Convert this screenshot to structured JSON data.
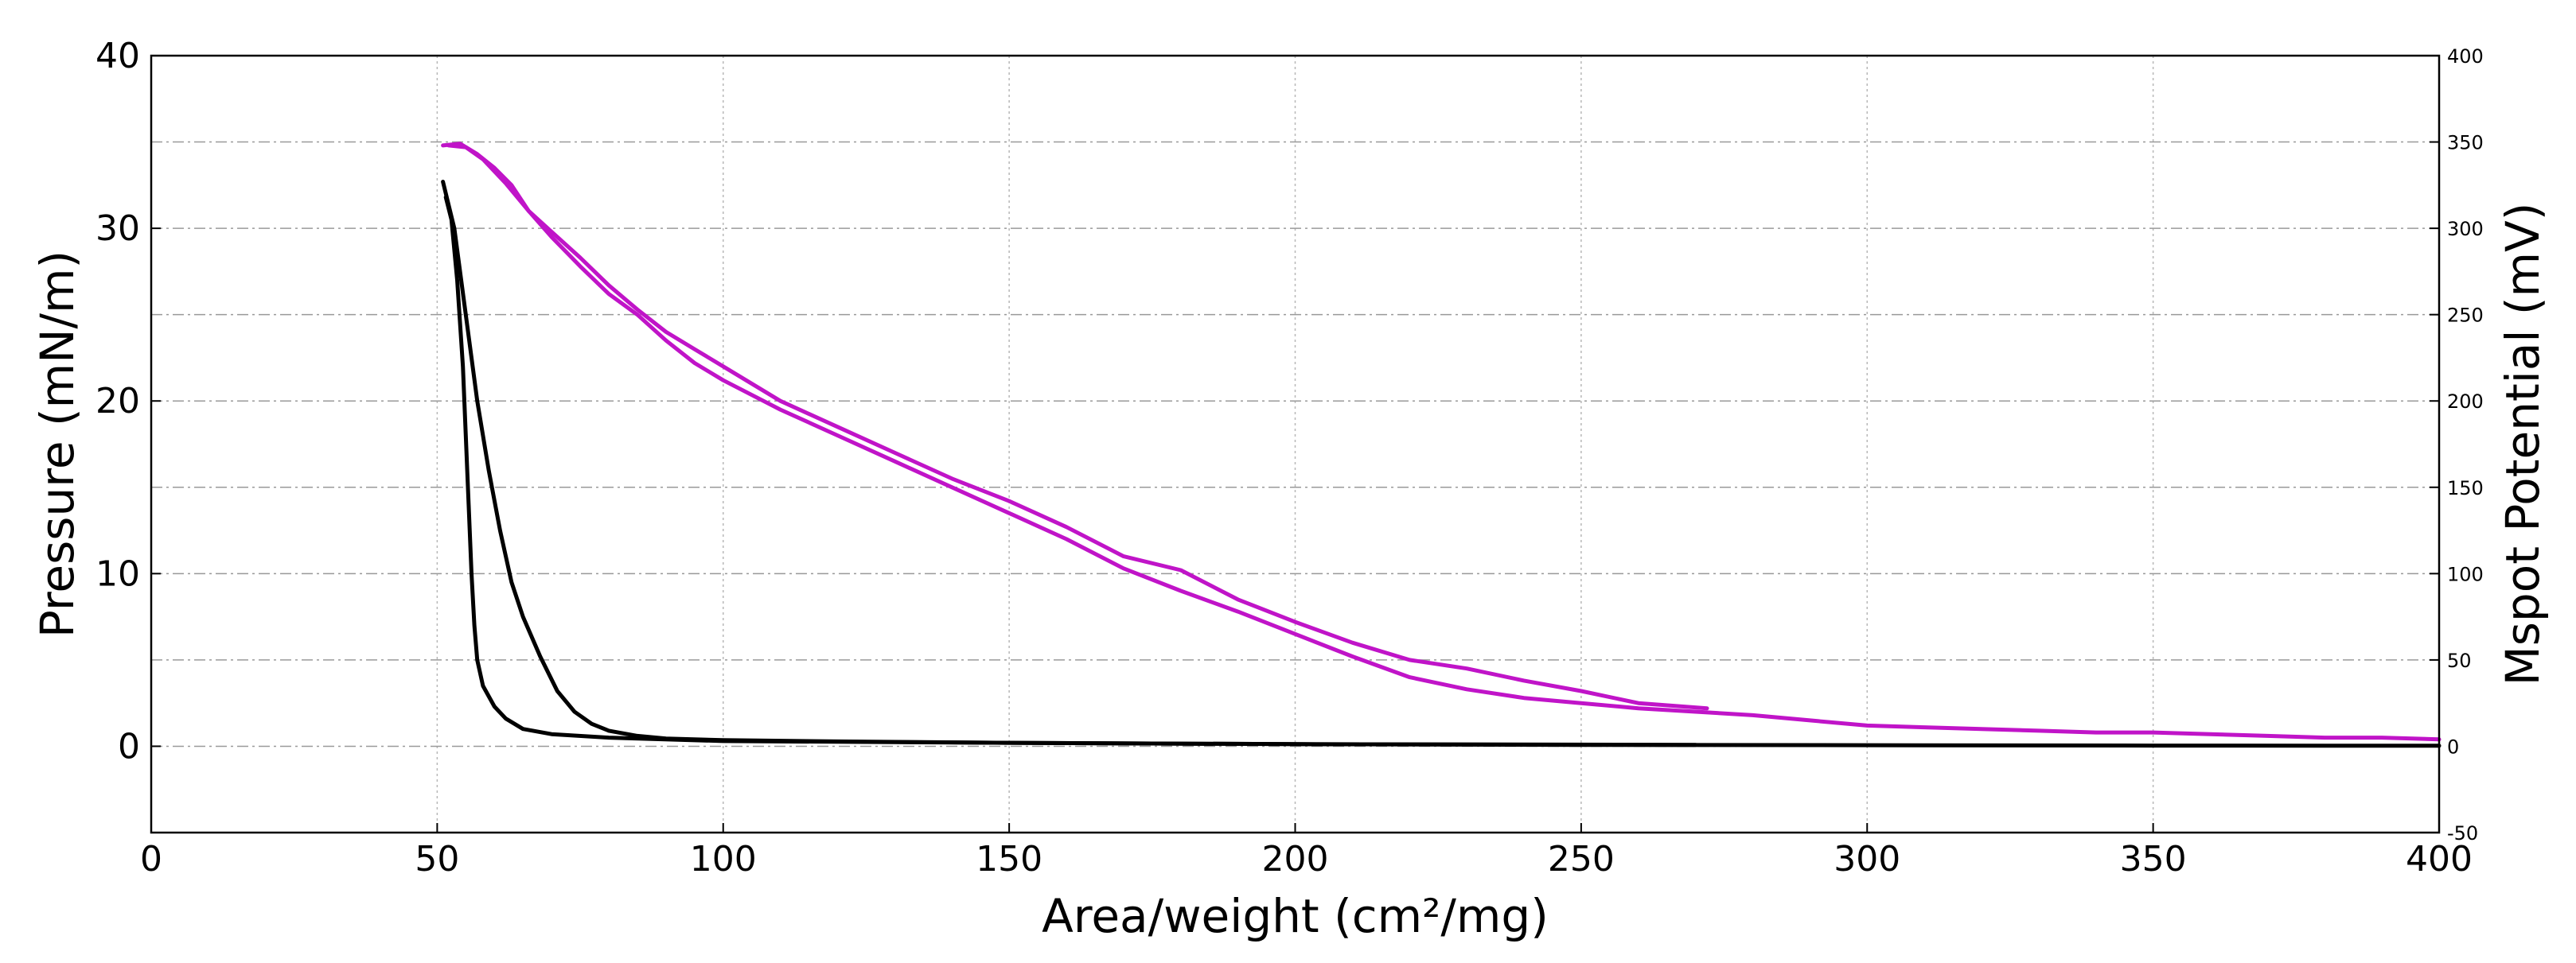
{
  "chart_data": {
    "type": "line",
    "xlabel": "Area/weight (cm²/mg)",
    "ylabel_left": "Pressure (mN/m)",
    "ylabel_right": "Mspot Potential (mV)",
    "xlim": [
      0,
      400
    ],
    "ylim_left": [
      -5,
      40
    ],
    "ylim_right": [
      -50,
      400
    ],
    "x_ticks": [
      0,
      50,
      100,
      150,
      200,
      250,
      300,
      350,
      400
    ],
    "y_ticks_left": [
      0,
      10,
      20,
      30,
      40
    ],
    "y_ticks_right": [
      -50,
      0,
      50,
      100,
      150,
      200,
      250,
      300,
      350,
      400
    ],
    "grid": true,
    "series": [
      {
        "axis": "left",
        "color": "#000000",
        "segments": [
          [
            [
              51.5,
              31.8
            ],
            [
              52.5,
              30.5
            ],
            [
              53.5,
              27
            ],
            [
              54.5,
              22
            ],
            [
              55,
              18
            ],
            [
              55.5,
              14
            ],
            [
              56,
              10
            ],
            [
              56.5,
              7
            ],
            [
              57,
              5
            ],
            [
              58,
              3.5
            ],
            [
              60,
              2.3
            ],
            [
              62,
              1.6
            ],
            [
              65,
              1.0
            ],
            [
              70,
              0.7
            ],
            [
              80,
              0.5
            ],
            [
              100,
              0.3
            ],
            [
              150,
              0.2
            ],
            [
              200,
              0.12
            ],
            [
              250,
              0.08
            ],
            [
              300,
              0.06
            ],
            [
              350,
              0.04
            ],
            [
              400,
              0.03
            ]
          ],
          [
            [
              51,
              32.7
            ],
            [
              53,
              30
            ],
            [
              55,
              25
            ],
            [
              57,
              20
            ],
            [
              59,
              16
            ],
            [
              61,
              12.5
            ],
            [
              63,
              9.5
            ],
            [
              65,
              7.5
            ],
            [
              68,
              5.2
            ],
            [
              71,
              3.2
            ],
            [
              74,
              2
            ],
            [
              77,
              1.3
            ],
            [
              80,
              0.9
            ],
            [
              85,
              0.6
            ],
            [
              90,
              0.45
            ],
            [
              100,
              0.35
            ],
            [
              120,
              0.28
            ],
            [
              150,
              0.2
            ],
            [
              200,
              0.12
            ],
            [
              270,
              0.08
            ]
          ]
        ]
      },
      {
        "axis": "right",
        "color": "#c014c8",
        "segments": [
          [
            [
              51,
              348
            ],
            [
              54,
              349
            ],
            [
              57,
              343
            ],
            [
              60,
              335
            ],
            [
              63,
              325
            ],
            [
              66,
              310
            ],
            [
              70,
              298
            ],
            [
              75,
              283
            ],
            [
              80,
              267
            ],
            [
              85,
              253
            ],
            [
              90,
              240
            ],
            [
              95,
              230
            ],
            [
              100,
              220
            ],
            [
              110,
              200
            ],
            [
              120,
              185
            ],
            [
              130,
              170
            ],
            [
              140,
              155
            ],
            [
              150,
              142
            ],
            [
              160,
              127
            ],
            [
              170,
              110
            ],
            [
              180,
              102
            ],
            [
              190,
              85
            ],
            [
              200,
              72
            ],
            [
              210,
              60
            ],
            [
              220,
              50
            ],
            [
              230,
              45
            ],
            [
              240,
              38
            ],
            [
              250,
              32
            ],
            [
              260,
              25
            ],
            [
              272,
              22
            ]
          ],
          [
            [
              52,
              348
            ],
            [
              55,
              347
            ],
            [
              58,
              340
            ],
            [
              62,
              326
            ],
            [
              66,
              310
            ],
            [
              70,
              295
            ],
            [
              75,
              278
            ],
            [
              80,
              262
            ],
            [
              85,
              250
            ],
            [
              90,
              235
            ],
            [
              95,
              222
            ],
            [
              100,
              212
            ],
            [
              110,
              195
            ],
            [
              120,
              180
            ],
            [
              130,
              165
            ],
            [
              140,
              150
            ],
            [
              150,
              135
            ],
            [
              160,
              120
            ],
            [
              170,
              103
            ],
            [
              180,
              90
            ],
            [
              190,
              78
            ],
            [
              200,
              65
            ],
            [
              210,
              52
            ],
            [
              220,
              40
            ],
            [
              230,
              33
            ],
            [
              240,
              28
            ],
            [
              250,
              25
            ],
            [
              260,
              22
            ],
            [
              270,
              20
            ],
            [
              280,
              18
            ],
            [
              290,
              15
            ],
            [
              300,
              12
            ],
            [
              310,
              11
            ],
            [
              320,
              10
            ],
            [
              330,
              9
            ],
            [
              340,
              8
            ],
            [
              350,
              8
            ],
            [
              360,
              7
            ],
            [
              370,
              6
            ],
            [
              380,
              5
            ],
            [
              390,
              5
            ],
            [
              400,
              4
            ]
          ]
        ]
      }
    ]
  }
}
